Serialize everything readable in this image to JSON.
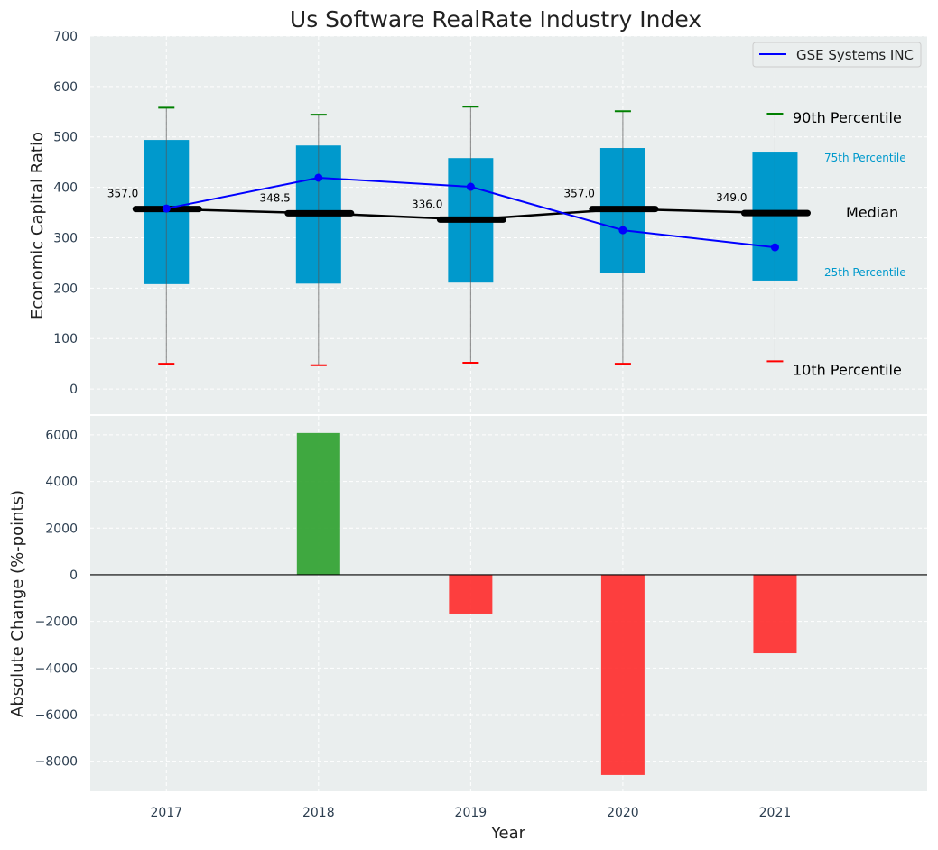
{
  "chart_data": [
    {
      "type": "box",
      "title": "Us Software RealRate Industry Index",
      "ylabel": "Economic Capital Ratio",
      "xlim": [
        2016.5,
        2022.0
      ],
      "ylim": [
        -50,
        700
      ],
      "yticks": [
        0,
        100,
        200,
        300,
        400,
        500,
        600,
        700
      ],
      "grid": true,
      "categories": [
        2017,
        2018,
        2019,
        2020,
        2021
      ],
      "p10": [
        50,
        47,
        52,
        50,
        55
      ],
      "p25": [
        208,
        209,
        211,
        231,
        215
      ],
      "median": [
        357.0,
        348.5,
        336.0,
        357.0,
        349.0
      ],
      "median_labels": [
        "357.0",
        "348.5",
        "336.0",
        "357.0",
        "349.0"
      ],
      "p75": [
        494,
        483,
        458,
        478,
        469
      ],
      "p90": [
        558,
        544,
        560,
        551,
        546
      ],
      "series": [
        {
          "name": "GSE Systems INC",
          "values": [
            358,
            419,
            401,
            315,
            281
          ],
          "color": "#0000ff"
        }
      ],
      "legend_position": "top-right",
      "annotations": {
        "p90": "90th Percentile",
        "p75": "75th Percentile",
        "median": "Median",
        "p25": "25th Percentile",
        "p10": "10th Percentile"
      },
      "colors": {
        "box": "#0099cc",
        "median": "#000000",
        "p90": "#008000",
        "p10": "#ff0000",
        "background": "#eaeeee"
      }
    },
    {
      "type": "bar",
      "xlabel": "Year",
      "ylabel": "Absolute Change (%-points)",
      "ylim": [
        -9290,
        6810
      ],
      "yticks": [
        -8000,
        -6000,
        -4000,
        -2000,
        0,
        2000,
        4000,
        6000
      ],
      "ytick_labels": [
        "−8000",
        "−6000",
        "−4000",
        "−2000",
        "0",
        "2000",
        "4000",
        "6000"
      ],
      "categories": [
        2017,
        2018,
        2019,
        2020,
        2021
      ],
      "xtick_labels": [
        "2017",
        "2018",
        "2019",
        "2020",
        "2021"
      ],
      "values": [
        0,
        6080,
        -1665,
        -8590,
        -3370
      ],
      "colors": {
        "positive": "#2ca02c",
        "negative": "#ff2a2a"
      }
    }
  ]
}
